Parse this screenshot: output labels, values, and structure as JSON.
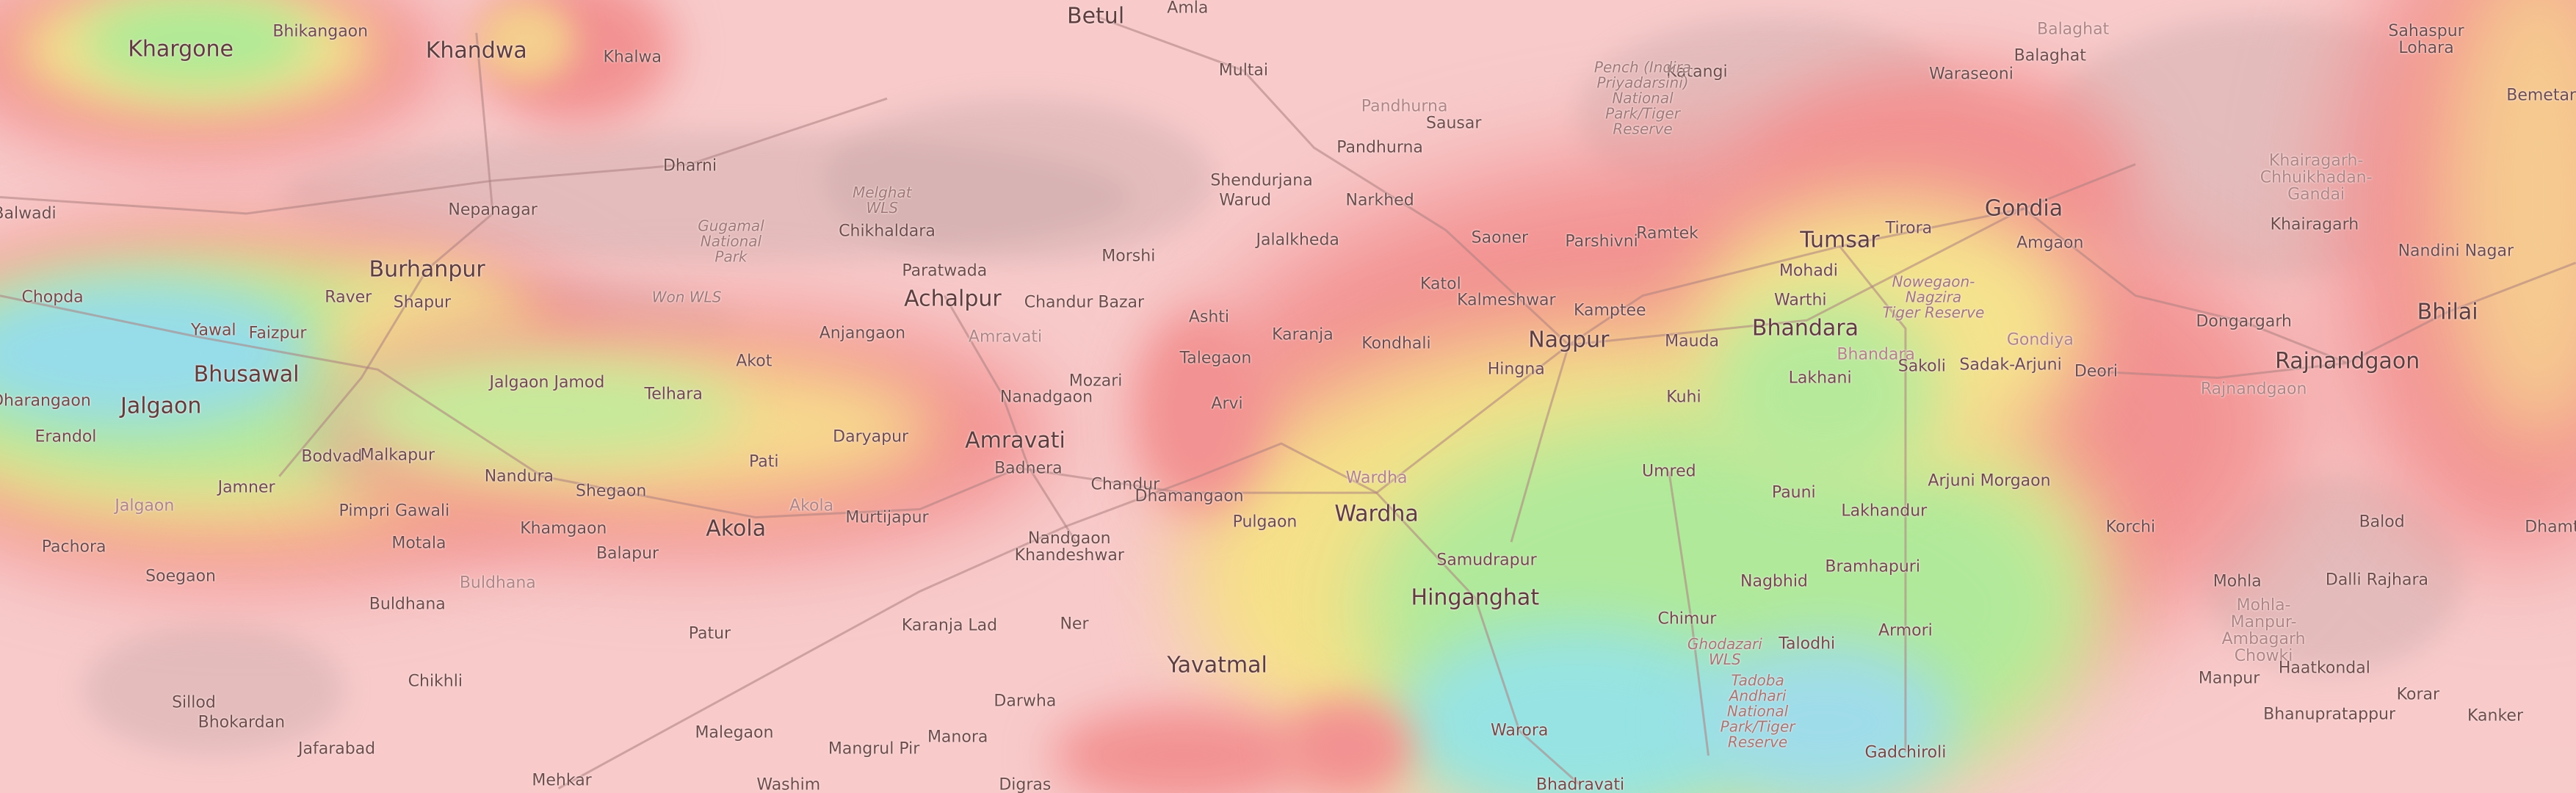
{
  "map": {
    "type": "topographic elevation map",
    "colors": {
      "base": "#f7caca",
      "high": "#f08080",
      "mid": "#f5f07a",
      "low": "#8ef07a",
      "lowest": "#7fe0f0"
    },
    "labels": [
      {
        "text": "Bhikangaon",
        "kind": "town"
      },
      {
        "text": "Khargone",
        "kind": "city"
      },
      {
        "text": "Khandwa",
        "kind": "city"
      },
      {
        "text": "Khalwa",
        "kind": "town"
      },
      {
        "text": "Betul",
        "kind": "city"
      },
      {
        "text": "Amla",
        "kind": "town"
      },
      {
        "text": "Multai",
        "kind": "town"
      },
      {
        "text": "Balaghat",
        "kind": "faint"
      },
      {
        "text": "Balaghat",
        "kind": "town"
      },
      {
        "text": "Katangi",
        "kind": "town"
      },
      {
        "text": "Waraseoni",
        "kind": "town"
      },
      {
        "text": "Sahaspur\nLohara",
        "kind": "town"
      },
      {
        "text": "Bemetara",
        "kind": "town"
      },
      {
        "text": "Pandhurna",
        "kind": "faint"
      },
      {
        "text": "Sausar",
        "kind": "town"
      },
      {
        "text": "Pench (Indira\nPriyadarsini)\nNational\nPark/Tiger\nReserve",
        "kind": "park"
      },
      {
        "text": "Dharni",
        "kind": "town"
      },
      {
        "text": "Balwadi",
        "kind": "town"
      },
      {
        "text": "Nepanagar",
        "kind": "town"
      },
      {
        "text": "Melghat\nWLS",
        "kind": "park"
      },
      {
        "text": "Gugamal\nNational\nPark",
        "kind": "park"
      },
      {
        "text": "Chikhaldara",
        "kind": "town"
      },
      {
        "text": "Shendurjana",
        "kind": "town"
      },
      {
        "text": "Warud",
        "kind": "town"
      },
      {
        "text": "Narkhed",
        "kind": "town"
      },
      {
        "text": "Pandhurna",
        "kind": "town"
      },
      {
        "text": "Burhanpur",
        "kind": "city"
      },
      {
        "text": "Chopda",
        "kind": "town"
      },
      {
        "text": "Raver",
        "kind": "town"
      },
      {
        "text": "Shapur",
        "kind": "town"
      },
      {
        "text": "Won WLS",
        "kind": "park"
      },
      {
        "text": "Yawal",
        "kind": "town"
      },
      {
        "text": "Faizpur",
        "kind": "town"
      },
      {
        "text": "Paratwada",
        "kind": "town"
      },
      {
        "text": "Achalpur",
        "kind": "city"
      },
      {
        "text": "Chandur Bazar",
        "kind": "town"
      },
      {
        "text": "Morshi",
        "kind": "town"
      },
      {
        "text": "Jalalkheda",
        "kind": "town"
      },
      {
        "text": "Katol",
        "kind": "town"
      },
      {
        "text": "Saoner",
        "kind": "town"
      },
      {
        "text": "Kalmeshwar",
        "kind": "town"
      },
      {
        "text": "Parshivni",
        "kind": "town"
      },
      {
        "text": "Ramtek",
        "kind": "town"
      },
      {
        "text": "Kamptee",
        "kind": "town"
      },
      {
        "text": "Nagpur",
        "kind": "city"
      },
      {
        "text": "Mauda",
        "kind": "town"
      },
      {
        "text": "Hingna",
        "kind": "town"
      },
      {
        "text": "Anjangaon",
        "kind": "town"
      },
      {
        "text": "Amravati",
        "kind": "faint"
      },
      {
        "text": "Ashti",
        "kind": "town"
      },
      {
        "text": "Karanja",
        "kind": "town"
      },
      {
        "text": "Kondhali",
        "kind": "town"
      },
      {
        "text": "Talegaon",
        "kind": "town"
      },
      {
        "text": "Mozari",
        "kind": "town"
      },
      {
        "text": "Nanadgaon",
        "kind": "town"
      },
      {
        "text": "Arvi",
        "kind": "town"
      },
      {
        "text": "Akot",
        "kind": "town"
      },
      {
        "text": "Telhara",
        "kind": "town"
      },
      {
        "text": "Jalgaon Jamod",
        "kind": "town"
      },
      {
        "text": "Bhusawal",
        "kind": "city"
      },
      {
        "text": "Jalgaon",
        "kind": "city"
      },
      {
        "text": "Dharangaon",
        "kind": "town"
      },
      {
        "text": "Tumsar",
        "kind": "city"
      },
      {
        "text": "Tirora",
        "kind": "town"
      },
      {
        "text": "Gondia",
        "kind": "city"
      },
      {
        "text": "Amgaon",
        "kind": "town"
      },
      {
        "text": "Mohadi",
        "kind": "town"
      },
      {
        "text": "Warthi",
        "kind": "town"
      },
      {
        "text": "Nowegaon-\nNagzira\nTiger Reserve",
        "kind": "park"
      },
      {
        "text": "Bhandara",
        "kind": "city"
      },
      {
        "text": "Bhandara",
        "kind": "faint"
      },
      {
        "text": "Gondiya",
        "kind": "faint"
      },
      {
        "text": "Lakhani",
        "kind": "town"
      },
      {
        "text": "Sakoli",
        "kind": "town"
      },
      {
        "text": "Sadak-Arjuni",
        "kind": "town"
      },
      {
        "text": "Deori",
        "kind": "town"
      },
      {
        "text": "Dongargarh",
        "kind": "town"
      },
      {
        "text": "Rajnandgaon",
        "kind": "city"
      },
      {
        "text": "Rajnandgaon",
        "kind": "faint"
      },
      {
        "text": "Khairagarh-\nChhuikhadan-\nGandai",
        "kind": "faint"
      },
      {
        "text": "Khairagarh",
        "kind": "town"
      },
      {
        "text": "Nandini Nagar",
        "kind": "town"
      },
      {
        "text": "Bhilai",
        "kind": "city"
      },
      {
        "text": "Kuhi",
        "kind": "town"
      },
      {
        "text": "Daryapur",
        "kind": "town"
      },
      {
        "text": "Pati",
        "kind": "town"
      },
      {
        "text": "Erandol",
        "kind": "town"
      },
      {
        "text": "Bodvad",
        "kind": "town"
      },
      {
        "text": "Malkapur",
        "kind": "town"
      },
      {
        "text": "Nandura",
        "kind": "town"
      },
      {
        "text": "Shegaon",
        "kind": "town"
      },
      {
        "text": "Jamner",
        "kind": "town"
      },
      {
        "text": "Jalgaon",
        "kind": "faint"
      },
      {
        "text": "Pimpri Gawali",
        "kind": "town"
      },
      {
        "text": "Akola",
        "kind": "city"
      },
      {
        "text": "Akola",
        "kind": "faint"
      },
      {
        "text": "Murtijapur",
        "kind": "town"
      },
      {
        "text": "Khamgaon",
        "kind": "town"
      },
      {
        "text": "Balapur",
        "kind": "town"
      },
      {
        "text": "Motala",
        "kind": "town"
      },
      {
        "text": "Pachora",
        "kind": "town"
      },
      {
        "text": "Soegaon",
        "kind": "town"
      },
      {
        "text": "Buldhana",
        "kind": "town"
      },
      {
        "text": "Buldhana",
        "kind": "faint"
      },
      {
        "text": "Patur",
        "kind": "town"
      },
      {
        "text": "Chikhli",
        "kind": "town"
      },
      {
        "text": "Sillod",
        "kind": "town"
      },
      {
        "text": "Bhokardan",
        "kind": "town"
      },
      {
        "text": "Jafarabad",
        "kind": "town"
      },
      {
        "text": "Mehkar",
        "kind": "town"
      },
      {
        "text": "Malegaon",
        "kind": "town"
      },
      {
        "text": "Washim",
        "kind": "town"
      },
      {
        "text": "Mangrul Pir",
        "kind": "town"
      },
      {
        "text": "Amravati",
        "kind": "city"
      },
      {
        "text": "Badnera",
        "kind": "town"
      },
      {
        "text": "Chandur",
        "kind": "town"
      },
      {
        "text": "Dhamangaon",
        "kind": "town"
      },
      {
        "text": "Pulgaon",
        "kind": "town"
      },
      {
        "text": "Wardha",
        "kind": "faint"
      },
      {
        "text": "Wardha",
        "kind": "city"
      },
      {
        "text": "Nandgaon\nKhandeshwar",
        "kind": "town"
      },
      {
        "text": "Umred",
        "kind": "town"
      },
      {
        "text": "Samudrapur",
        "kind": "town"
      },
      {
        "text": "Hinganghat",
        "kind": "city"
      },
      {
        "text": "Ner",
        "kind": "town"
      },
      {
        "text": "Karanja Lad",
        "kind": "town"
      },
      {
        "text": "Yavatmal",
        "kind": "city"
      },
      {
        "text": "Darwha",
        "kind": "town"
      },
      {
        "text": "Manora",
        "kind": "town"
      },
      {
        "text": "Digras",
        "kind": "town"
      },
      {
        "text": "Warora",
        "kind": "town"
      },
      {
        "text": "Chimur",
        "kind": "town"
      },
      {
        "text": "Tadoba\nAndhari\nNational\nPark/Tiger\nReserve",
        "kind": "park"
      },
      {
        "text": "Ghodazari\nWLS",
        "kind": "park"
      },
      {
        "text": "Talodhi",
        "kind": "town"
      },
      {
        "text": "Nagbhid",
        "kind": "town"
      },
      {
        "text": "Bramhapuri",
        "kind": "town"
      },
      {
        "text": "Armori",
        "kind": "town"
      },
      {
        "text": "Pauni",
        "kind": "town"
      },
      {
        "text": "Lakhandur",
        "kind": "town"
      },
      {
        "text": "Arjuni Morgaon",
        "kind": "town"
      },
      {
        "text": "Gadchiroli",
        "kind": "town"
      },
      {
        "text": "Bhadravati",
        "kind": "town"
      },
      {
        "text": "Korchi",
        "kind": "town"
      },
      {
        "text": "Mohla",
        "kind": "town"
      },
      {
        "text": "Mohla-\nManpur-\nAmbagarh\nChowki",
        "kind": "faint"
      },
      {
        "text": "Manpur",
        "kind": "town"
      },
      {
        "text": "Haatkondal",
        "kind": "town"
      },
      {
        "text": "Bhanupratappur",
        "kind": "town"
      },
      {
        "text": "Korar",
        "kind": "town"
      },
      {
        "text": "Kanker",
        "kind": "town"
      },
      {
        "text": "Dalli Rajhara",
        "kind": "town"
      },
      {
        "text": "Balod",
        "kind": "town"
      },
      {
        "text": "Dhamtari",
        "kind": "town"
      }
    ]
  }
}
